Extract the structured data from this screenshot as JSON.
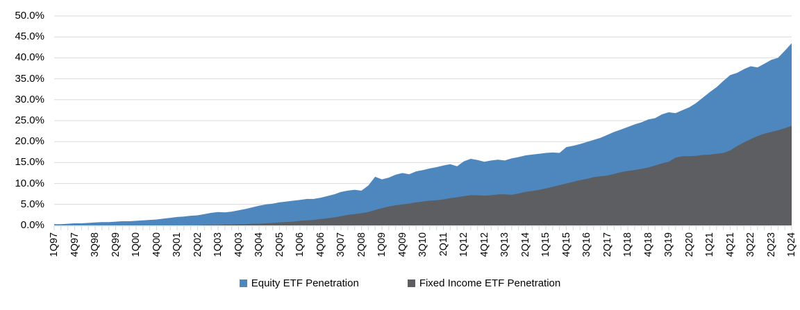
{
  "chart_data": {
    "type": "area",
    "mode": "overlapping",
    "title": "",
    "legend_position": "bottom",
    "grid": "horizontal",
    "x_label_interval": 3,
    "x": [
      "1Q97",
      "2Q97",
      "3Q97",
      "4Q97",
      "1Q98",
      "2Q98",
      "3Q98",
      "4Q98",
      "1Q99",
      "2Q99",
      "3Q99",
      "4Q99",
      "1Q00",
      "2Q00",
      "3Q00",
      "4Q00",
      "1Q01",
      "2Q01",
      "3Q01",
      "4Q01",
      "1Q02",
      "2Q02",
      "3Q02",
      "4Q02",
      "1Q03",
      "2Q03",
      "3Q03",
      "4Q03",
      "1Q04",
      "2Q04",
      "3Q04",
      "4Q04",
      "1Q05",
      "2Q05",
      "3Q05",
      "4Q05",
      "1Q06",
      "2Q06",
      "3Q06",
      "4Q06",
      "1Q07",
      "2Q07",
      "3Q07",
      "4Q07",
      "1Q08",
      "2Q08",
      "3Q08",
      "4Q08",
      "1Q09",
      "2Q09",
      "3Q09",
      "4Q09",
      "1Q10",
      "2Q10",
      "3Q10",
      "4Q10",
      "1Q11",
      "2Q11",
      "3Q11",
      "4Q11",
      "1Q12",
      "2Q12",
      "3Q12",
      "4Q12",
      "1Q13",
      "2Q13",
      "3Q13",
      "4Q13",
      "1Q14",
      "2Q14",
      "3Q14",
      "4Q14",
      "1Q15",
      "2Q15",
      "3Q15",
      "4Q15",
      "1Q16",
      "2Q16",
      "3Q16",
      "4Q16",
      "1Q17",
      "2Q17",
      "3Q17",
      "4Q17",
      "1Q18",
      "2Q18",
      "3Q18",
      "4Q18",
      "1Q19",
      "2Q19",
      "3Q19",
      "4Q19",
      "1Q20",
      "2Q20",
      "3Q20",
      "4Q20",
      "1Q21",
      "2Q21",
      "3Q21",
      "4Q21",
      "1Q22",
      "2Q22",
      "3Q22",
      "4Q22",
      "1Q23",
      "2Q23",
      "3Q23",
      "4Q23",
      "1Q24"
    ],
    "series": [
      {
        "name": "Equity ETF Penetration",
        "color": "#4E86BE",
        "values": [
          0.3,
          0.3,
          0.4,
          0.5,
          0.5,
          0.6,
          0.7,
          0.8,
          0.8,
          0.9,
          1.0,
          1.0,
          1.1,
          1.2,
          1.3,
          1.4,
          1.6,
          1.8,
          2.0,
          2.1,
          2.3,
          2.4,
          2.7,
          3.0,
          3.2,
          3.1,
          3.3,
          3.6,
          3.9,
          4.3,
          4.7,
          5.0,
          5.2,
          5.5,
          5.7,
          5.9,
          6.1,
          6.3,
          6.3,
          6.6,
          7.0,
          7.4,
          8.0,
          8.3,
          8.5,
          8.3,
          9.5,
          11.6,
          11.0,
          11.4,
          12.1,
          12.5,
          12.2,
          12.9,
          13.2,
          13.6,
          13.9,
          14.3,
          14.6,
          14.1,
          15.3,
          15.9,
          15.6,
          15.2,
          15.5,
          15.7,
          15.5,
          16.0,
          16.3,
          16.7,
          16.9,
          17.1,
          17.3,
          17.4,
          17.3,
          18.7,
          19.0,
          19.4,
          19.9,
          20.4,
          20.9,
          21.6,
          22.3,
          22.9,
          23.5,
          24.1,
          24.6,
          25.3,
          25.6,
          26.5,
          27.0,
          26.8,
          27.5,
          28.2,
          29.2,
          30.5,
          31.8,
          33.0,
          34.5,
          35.9,
          36.4,
          37.3,
          38.0,
          37.7,
          38.6,
          39.5,
          40.0,
          41.7,
          43.5
        ]
      },
      {
        "name": "Fixed Income ETF Penetration",
        "color": "#5C5E61",
        "values": [
          0,
          0,
          0,
          0,
          0,
          0,
          0,
          0,
          0,
          0,
          0,
          0,
          0,
          0,
          0,
          0,
          0,
          0,
          0,
          0,
          0,
          0,
          0.1,
          0.1,
          0.1,
          0.2,
          0.2,
          0.3,
          0.3,
          0.4,
          0.4,
          0.5,
          0.6,
          0.7,
          0.8,
          0.9,
          1.1,
          1.2,
          1.3,
          1.5,
          1.7,
          1.9,
          2.2,
          2.5,
          2.7,
          2.9,
          3.2,
          3.7,
          4.1,
          4.5,
          4.8,
          5.0,
          5.2,
          5.5,
          5.7,
          5.9,
          6.0,
          6.2,
          6.5,
          6.7,
          7.0,
          7.2,
          7.2,
          7.1,
          7.2,
          7.4,
          7.4,
          7.3,
          7.6,
          8.0,
          8.2,
          8.5,
          8.8,
          9.2,
          9.6,
          10.0,
          10.4,
          10.8,
          11.1,
          11.5,
          11.7,
          11.9,
          12.3,
          12.7,
          13.0,
          13.2,
          13.5,
          13.8,
          14.3,
          14.8,
          15.2,
          16.2,
          16.5,
          16.5,
          16.6,
          16.8,
          16.9,
          17.1,
          17.3,
          17.9,
          18.9,
          19.8,
          20.6,
          21.3,
          21.9,
          22.3,
          22.7,
          23.2,
          23.8
        ]
      }
    ],
    "y_axis": {
      "min": 0,
      "max": 50,
      "step": 5,
      "tick_labels": [
        "0.0%",
        "5.0%",
        "10.0%",
        "15.0%",
        "20.0%",
        "25.0%",
        "30.0%",
        "35.0%",
        "40.0%",
        "45.0%",
        "50.0%"
      ]
    },
    "colors": {
      "gridline": "#D9D9D9",
      "tick": "#D6D8DA",
      "text": "#000000"
    }
  }
}
